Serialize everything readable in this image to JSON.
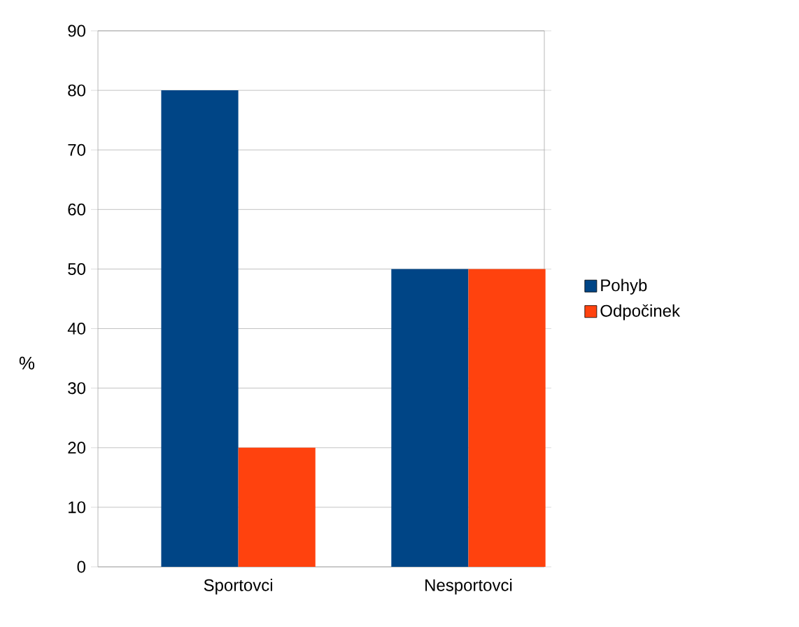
{
  "chart_data": {
    "type": "bar",
    "ylabel": "%",
    "categories": [
      "Sportovci",
      "Nesportovci"
    ],
    "series": [
      {
        "name": "Pohyb",
        "color": "#004586",
        "values": [
          80,
          50
        ]
      },
      {
        "name": "Odpočinek",
        "color": "#ff420e",
        "values": [
          20,
          50
        ]
      }
    ],
    "ylim": [
      0,
      90
    ],
    "yticks": [
      0,
      10,
      20,
      30,
      40,
      50,
      60,
      70,
      80,
      90
    ],
    "grid": "y",
    "legend": "right"
  }
}
